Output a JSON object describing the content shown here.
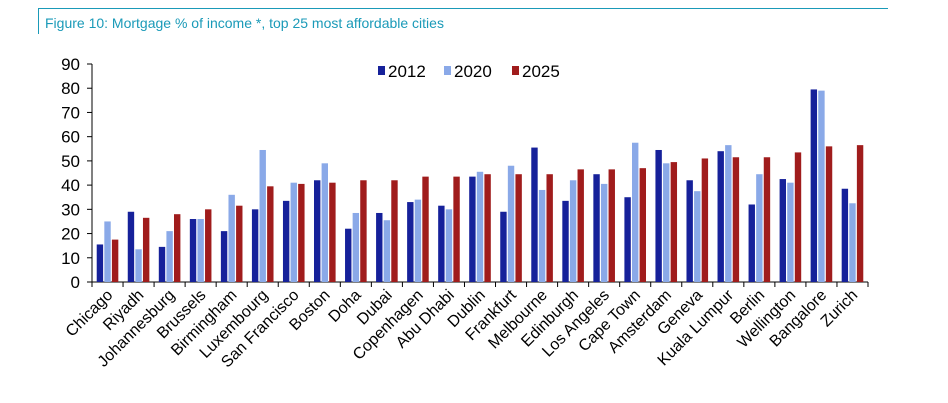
{
  "figure": {
    "title": "Figure 10: Mortgage % of income *, top 25 most affordable cities"
  },
  "chart_data": {
    "type": "bar",
    "title": "",
    "xlabel": "",
    "ylabel": "",
    "ylim": [
      0,
      90
    ],
    "yticks": [
      0,
      10,
      20,
      30,
      40,
      50,
      60,
      70,
      80,
      90
    ],
    "grid": false,
    "legend_position": "top-center",
    "categories": [
      "Chicago",
      "Riyadh",
      "Johannesburg",
      "Brussels",
      "Birmingham",
      "Luxembourg",
      "San Francisco",
      "Boston",
      "Doha",
      "Dubai",
      "Copenhagen",
      "Abu Dhabi",
      "Dublin",
      "Frankfurt",
      "Melbourne",
      "Edinburgh",
      "Los Angeles",
      "Cape Town",
      "Amsterdam",
      "Geneva",
      "Kuala Lumpur",
      "Berlin",
      "Wellington",
      "Bangalore",
      "Zurich"
    ],
    "series": [
      {
        "name": "2012",
        "color": "#16219a",
        "values": [
          15.5,
          29,
          14.5,
          26,
          21,
          30,
          33.5,
          42,
          22,
          28.5,
          33,
          31.5,
          43.5,
          29,
          55.5,
          33.5,
          44.5,
          35,
          54.5,
          42,
          54,
          32,
          42.5,
          79.5,
          38.5
        ]
      },
      {
        "name": "2020",
        "color": "#8aa9e8",
        "values": [
          25,
          13.5,
          21,
          26,
          36,
          54.5,
          41,
          49,
          28.5,
          25.5,
          34,
          30,
          45.5,
          48,
          38,
          42,
          40.5,
          57.5,
          49,
          37.5,
          56.5,
          44.5,
          41,
          79,
          32.5
        ]
      },
      {
        "name": "2025",
        "color": "#a01c1c",
        "values": [
          17.5,
          26.5,
          28,
          30,
          31.5,
          39.5,
          40.5,
          41,
          42,
          42,
          43.5,
          43.5,
          44.5,
          44.5,
          44.5,
          46.5,
          46.5,
          47,
          49.5,
          51,
          51.5,
          51.5,
          53.5,
          56,
          56.5
        ]
      }
    ]
  }
}
